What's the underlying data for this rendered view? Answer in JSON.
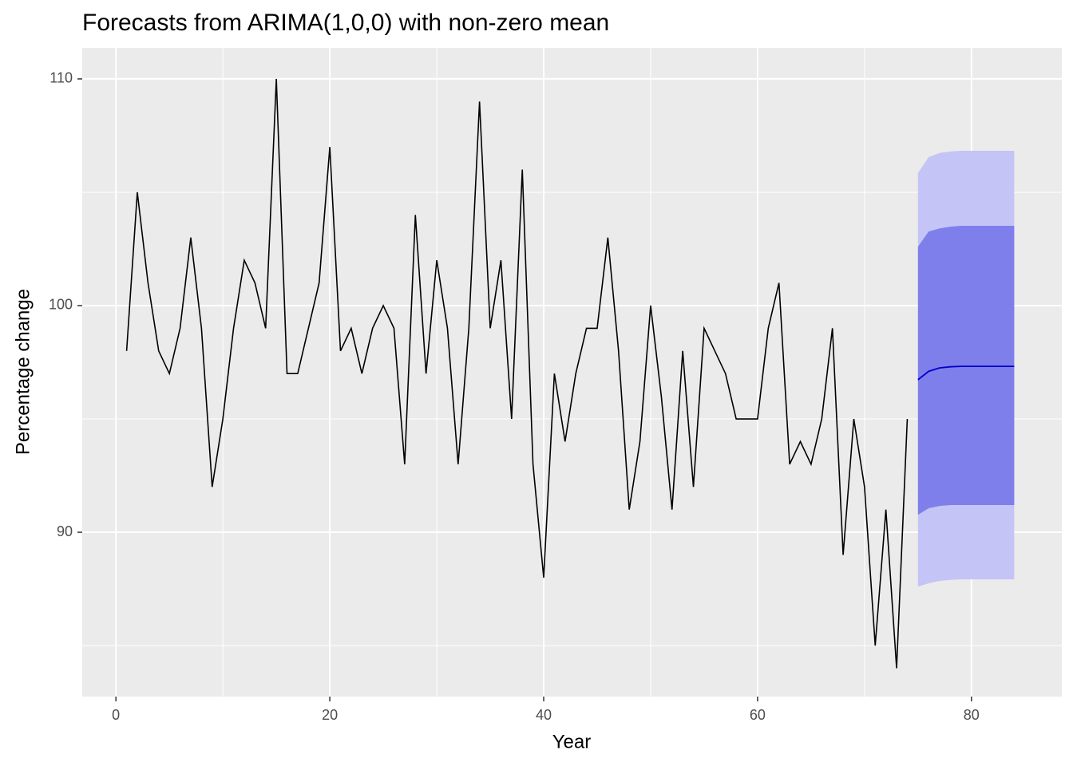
{
  "chart_data": {
    "type": "forecast",
    "title": "Forecasts from ARIMA(1,0,0) with non-zero mean",
    "x_label": "Year",
    "y_label": "Percentage change",
    "xlim": [
      -3.15,
      88.45
    ],
    "ylim": [
      82.75,
      111.37
    ],
    "xticks": [
      0,
      20,
      40,
      60,
      80
    ],
    "yticks": [
      90,
      100,
      110
    ],
    "xminor": [
      10,
      30,
      50,
      70
    ],
    "yminor": [
      85,
      95,
      105
    ],
    "grid": true,
    "series": [
      {
        "color": "#000000",
        "x": [
          1,
          2,
          3,
          4,
          5,
          6,
          7,
          8,
          9,
          10,
          11,
          12,
          13,
          14,
          15,
          16,
          17,
          18,
          19,
          20,
          21,
          22,
          23,
          24,
          25,
          26,
          27,
          28,
          29,
          30,
          31,
          32,
          33,
          34,
          35,
          36,
          37,
          38,
          39,
          40,
          41,
          42,
          43,
          44,
          45,
          46,
          47,
          48,
          49,
          50,
          51,
          52,
          53,
          54,
          55,
          56,
          57,
          58,
          59,
          60,
          61,
          62,
          63,
          64,
          65,
          66,
          67,
          68,
          69,
          70,
          71,
          72,
          73,
          74
        ],
        "values": [
          98,
          105,
          101,
          98,
          97,
          99,
          103,
          99,
          92,
          95,
          99,
          102,
          101,
          99,
          110,
          97,
          97,
          99,
          101,
          107,
          98,
          99,
          97,
          99,
          100,
          99,
          93,
          104,
          97,
          102,
          99,
          93,
          99,
          109,
          99,
          102,
          95,
          106,
          93,
          88,
          97,
          94,
          97,
          99,
          99,
          103,
          98,
          91,
          94,
          100,
          96,
          91,
          98,
          92,
          99,
          98,
          97,
          95,
          95,
          95,
          99,
          101,
          93,
          94,
          93,
          95,
          99,
          89,
          95,
          92,
          85,
          91,
          84,
          95
        ]
      }
    ],
    "forecast": {
      "x": [
        75,
        76,
        77,
        78,
        79,
        80,
        81,
        82,
        83,
        84
      ],
      "mean": [
        96.73,
        97.1,
        97.25,
        97.3,
        97.32,
        97.32,
        97.32,
        97.32,
        97.32,
        97.32
      ],
      "lo80": [
        90.77,
        91.06,
        91.16,
        91.2,
        91.2,
        91.2,
        91.2,
        91.2,
        91.2,
        91.2
      ],
      "hi80": [
        102.6,
        103.27,
        103.4,
        103.48,
        103.52,
        103.52,
        103.52,
        103.52,
        103.52,
        103.52
      ],
      "lo95": [
        87.6,
        87.75,
        87.85,
        87.9,
        87.92,
        87.92,
        87.92,
        87.92,
        87.92,
        87.92
      ],
      "hi95": [
        105.85,
        106.55,
        106.73,
        106.8,
        106.83,
        106.83,
        106.83,
        106.83,
        106.83,
        106.83
      ],
      "mean_color": "#0000cc",
      "color80": "#7f7fec",
      "color95": "#c4c4f6"
    }
  }
}
